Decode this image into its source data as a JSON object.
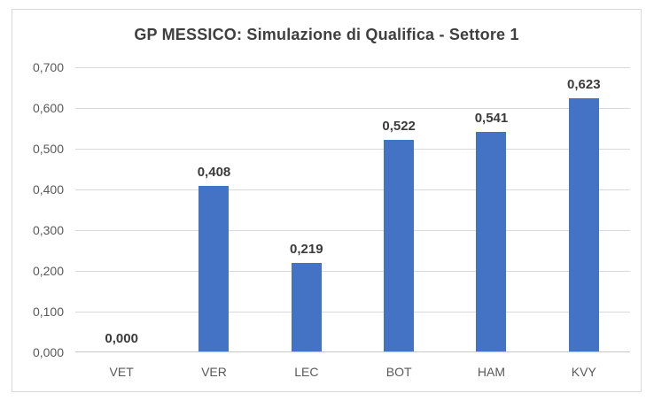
{
  "chart_data": {
    "type": "bar",
    "title": "GP MESSICO: Simulazione di Qualifica - Settore 1",
    "categories": [
      "VET",
      "VER",
      "LEC",
      "BOT",
      "HAM",
      "KVY"
    ],
    "values": [
      0.0,
      0.408,
      0.219,
      0.522,
      0.541,
      0.623
    ],
    "value_labels": [
      "0,000",
      "0,408",
      "0,219",
      "0,522",
      "0,541",
      "0,623"
    ],
    "y_ticks": [
      "0,000",
      "0,100",
      "0,200",
      "0,300",
      "0,400",
      "0,500",
      "0,600",
      "0,700"
    ],
    "y_tick_values": [
      0.0,
      0.1,
      0.2,
      0.3,
      0.4,
      0.5,
      0.6,
      0.7
    ],
    "ylim": [
      0.0,
      0.7
    ],
    "xlabel": "",
    "ylabel": "",
    "grid": true,
    "legend_position": "none",
    "colors": {
      "bar": "#4472c4",
      "gridline": "#d9d9d9",
      "axis_line": "#c6c6c6",
      "title_text": "#3f3f3f",
      "value_label_text": "#3b3b3b",
      "tick_label_text": "#595959",
      "chart_border": "#d9d9d9",
      "background": "#ffffff"
    }
  }
}
